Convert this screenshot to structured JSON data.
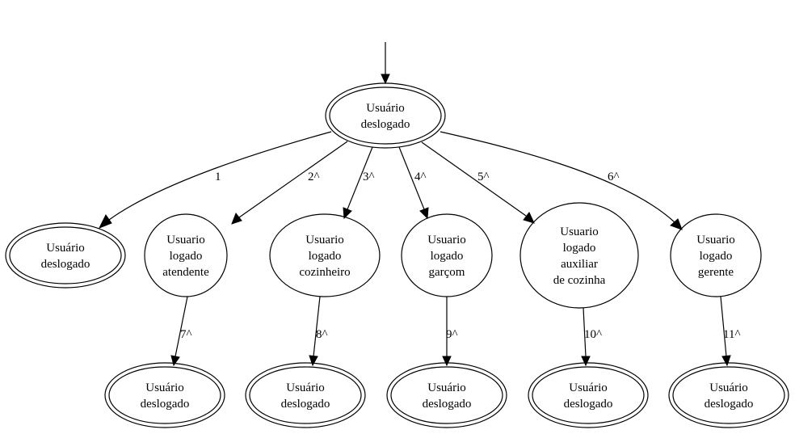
{
  "nodes": {
    "root": {
      "lines": [
        "Usuário",
        "deslogado"
      ],
      "shape": "doublecircle"
    },
    "desl1": {
      "lines": [
        "Usuário",
        "deslogado"
      ],
      "shape": "doublecircle"
    },
    "atendente": {
      "lines": [
        "Usuario",
        "logado",
        "atendente"
      ],
      "shape": "ellipse"
    },
    "cozinheiro": {
      "lines": [
        "Usuario",
        "logado",
        "cozinheiro"
      ],
      "shape": "ellipse"
    },
    "garcom": {
      "lines": [
        "Usuario",
        "logado",
        "garçom"
      ],
      "shape": "ellipse"
    },
    "auxiliar": {
      "lines": [
        "Usuario",
        "logado",
        "auxiliar",
        "de cozinha"
      ],
      "shape": "ellipse"
    },
    "gerente": {
      "lines": [
        "Usuario",
        "logado",
        "gerente"
      ],
      "shape": "ellipse"
    },
    "desl7": {
      "lines": [
        "Usuário",
        "deslogado"
      ],
      "shape": "doublecircle"
    },
    "desl8": {
      "lines": [
        "Usuário",
        "deslogado"
      ],
      "shape": "doublecircle"
    },
    "desl9": {
      "lines": [
        "Usuário",
        "deslogado"
      ],
      "shape": "doublecircle"
    },
    "desl10": {
      "lines": [
        "Usuário",
        "deslogado"
      ],
      "shape": "doublecircle"
    },
    "desl11": {
      "lines": [
        "Usuário",
        "deslogado"
      ],
      "shape": "doublecircle"
    }
  },
  "edges": [
    {
      "id": "start",
      "from": null,
      "to": "root",
      "label": ""
    },
    {
      "id": "e1",
      "from": "root",
      "to": "desl1",
      "label": "1"
    },
    {
      "id": "e2",
      "from": "root",
      "to": "atendente",
      "label": "2^"
    },
    {
      "id": "e3",
      "from": "root",
      "to": "cozinheiro",
      "label": "3^"
    },
    {
      "id": "e4",
      "from": "root",
      "to": "garcom",
      "label": "4^"
    },
    {
      "id": "e5",
      "from": "root",
      "to": "auxiliar",
      "label": "5^"
    },
    {
      "id": "e6",
      "from": "root",
      "to": "gerente",
      "label": "6^"
    },
    {
      "id": "e7",
      "from": "atendente",
      "to": "desl7",
      "label": "7^"
    },
    {
      "id": "e8",
      "from": "cozinheiro",
      "to": "desl8",
      "label": "8^"
    },
    {
      "id": "e9",
      "from": "garcom",
      "to": "desl9",
      "label": "9^"
    },
    {
      "id": "e10",
      "from": "auxiliar",
      "to": "desl10",
      "label": "10^"
    },
    {
      "id": "e11",
      "from": "gerente",
      "to": "desl11",
      "label": "11^"
    }
  ]
}
